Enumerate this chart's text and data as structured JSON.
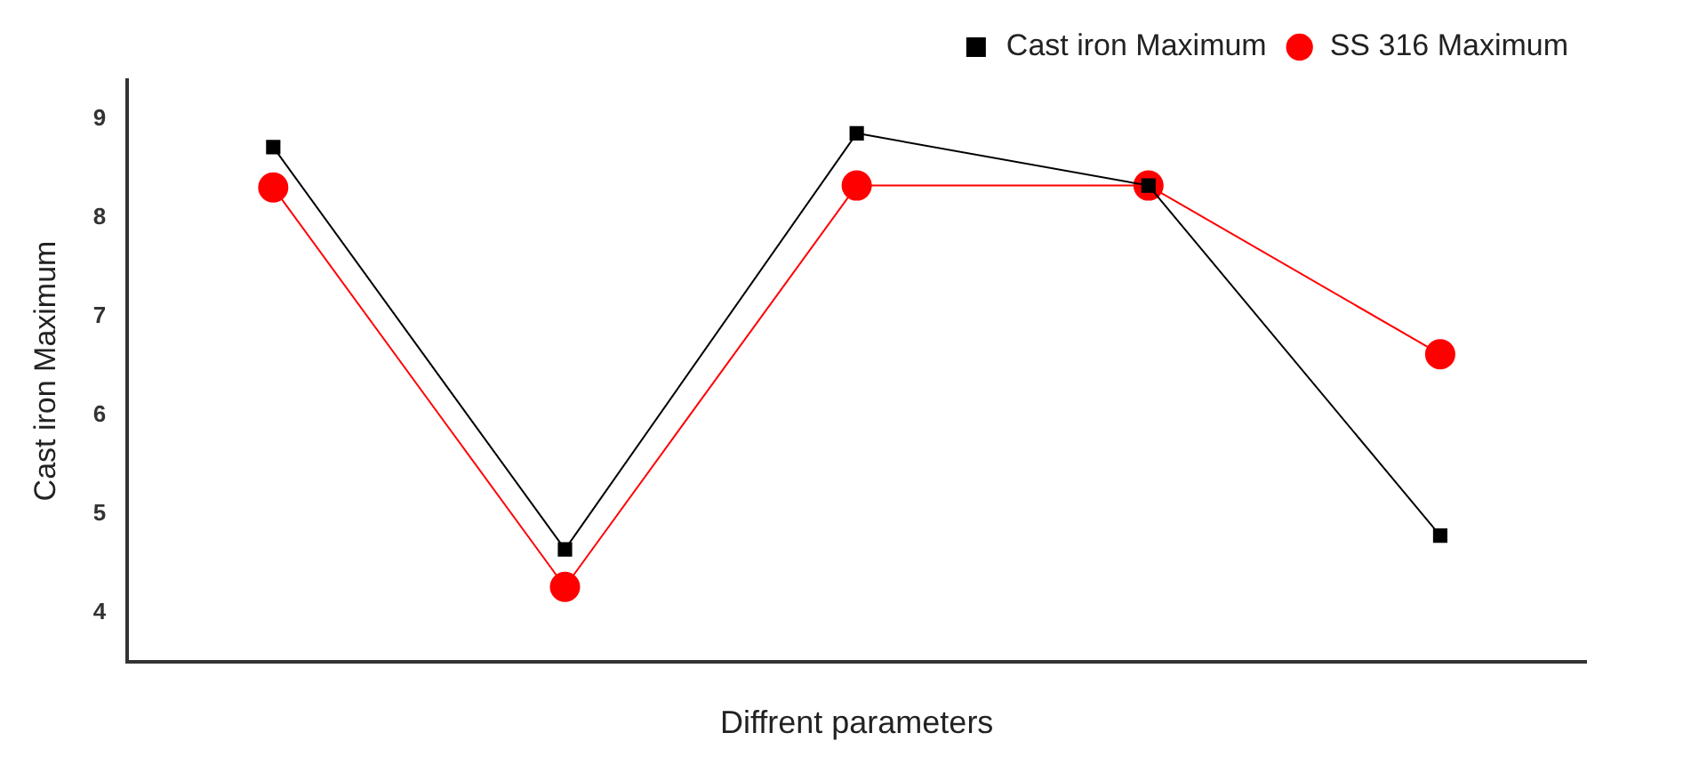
{
  "chart_data": {
    "type": "line",
    "xlabel": "Diffrent parameters",
    "ylabel": "Cast iron Maximum",
    "categories": [
      null,
      null,
      null,
      null,
      null
    ],
    "series": [
      {
        "name": "Cast iron Maximum",
        "color": "#000000",
        "marker": "square",
        "values": [
          8.72,
          4.64,
          8.86,
          8.33,
          4.78
        ]
      },
      {
        "name": "SS 316 Maximum",
        "color": "#ff0000",
        "marker": "circle",
        "values": [
          8.31,
          4.26,
          8.33,
          8.33,
          6.62
        ]
      }
    ],
    "ylim": [
      3.5,
      9.4
    ],
    "yticks": [
      4,
      5,
      6,
      7,
      8,
      9
    ],
    "grid": false,
    "legend": "top right",
    "line_style": "solid"
  }
}
